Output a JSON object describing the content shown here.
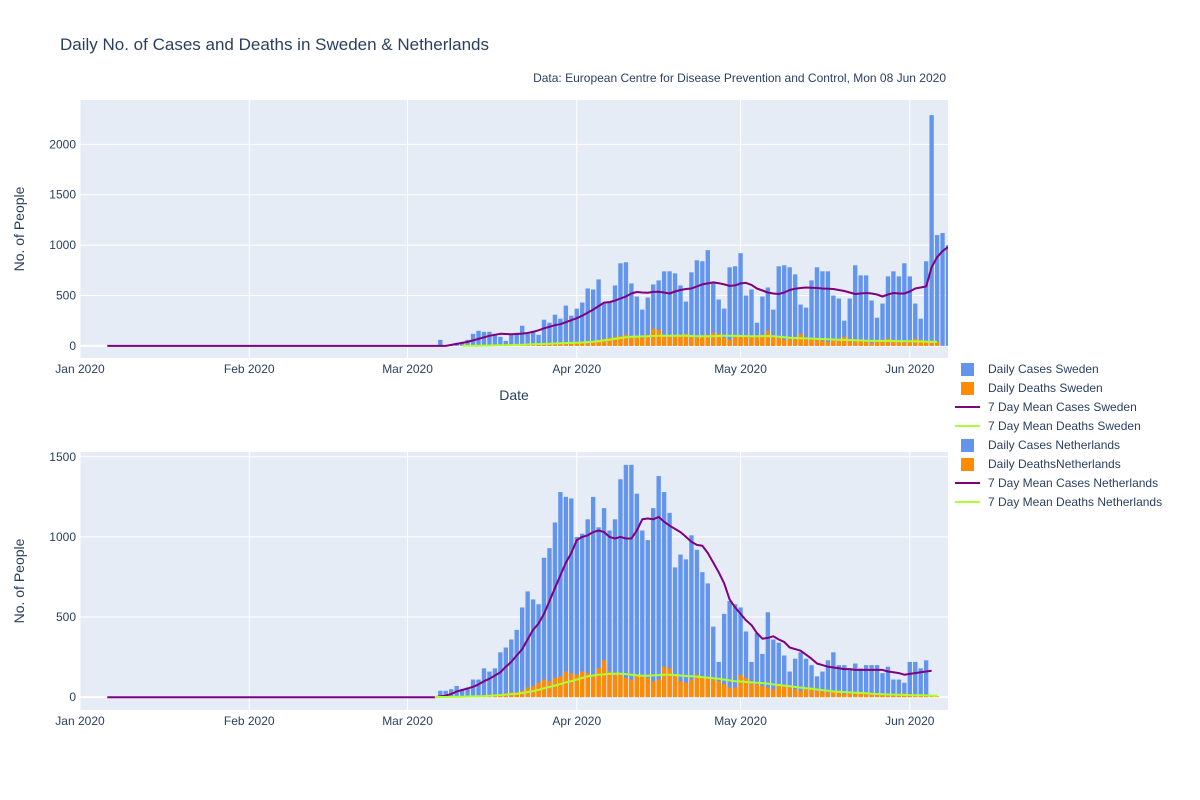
{
  "title": "Daily No. of Cases and Deaths in Sweden & Netherlands",
  "source": "Data: European Centre for Disease Prevention and Control, Mon 08 Jun 2020",
  "colors": {
    "cases_bar": "#6495ed",
    "deaths_bar": "#ff8c00",
    "mean_cases": "#800080",
    "mean_deaths": "#adff2f",
    "plot_bg": "#e5ecf6",
    "grid": "#ffffff"
  },
  "legend": [
    {
      "label": "Daily Cases Sweden",
      "kind": "bar",
      "color": "#6495ed"
    },
    {
      "label": "Daily Deaths Sweden",
      "kind": "bar",
      "color": "#ff8c00"
    },
    {
      "label": "7 Day Mean Cases Sweden",
      "kind": "line",
      "color": "#800080"
    },
    {
      "label": "7 Day Mean Deaths Sweden",
      "kind": "line",
      "color": "#adff2f"
    },
    {
      "label": "Daily Cases Netherlands",
      "kind": "bar",
      "color": "#6495ed"
    },
    {
      "label": "Daily DeathsNetherlands",
      "kind": "bar",
      "color": "#ff8c00"
    },
    {
      "label": "7 Day Mean Cases Netherlands",
      "kind": "line",
      "color": "#800080"
    },
    {
      "label": "7 Day Mean Deaths Netherlands",
      "kind": "line",
      "color": "#adff2f"
    }
  ],
  "chart_data": [
    {
      "type": "bar",
      "country": "Sweden",
      "xlabel": "Date",
      "ylabel": "No. of People",
      "xlim": [
        "2020-01-01",
        "2020-06-08"
      ],
      "ylim": [
        -120,
        2440
      ],
      "xticks": [
        "Jan 2020",
        "Feb 2020",
        "Mar 2020",
        "Apr 2020",
        "May 2020",
        "Jun 2020"
      ],
      "yticks": [
        0,
        500,
        1000,
        1500,
        2000
      ],
      "cases": {
        "start": "2020-03-04",
        "values": [
          0,
          0,
          0,
          60,
          0,
          10,
          30,
          40,
          60,
          120,
          150,
          140,
          140,
          120,
          90,
          50,
          120,
          130,
          200,
          120,
          150,
          110,
          260,
          230,
          310,
          270,
          400,
          300,
          370,
          430,
          570,
          560,
          660,
          420,
          430,
          600,
          820,
          830,
          620,
          490,
          360,
          480,
          610,
          650,
          740,
          740,
          720,
          600,
          440,
          730,
          850,
          840,
          950,
          620,
          460,
          370,
          780,
          790,
          920,
          500,
          560,
          230,
          490,
          580,
          360,
          790,
          800,
          780,
          710,
          410,
          380,
          650,
          780,
          740,
          740,
          500,
          470,
          250,
          470,
          800,
          700,
          700,
          450,
          280,
          420,
          690,
          740,
          690,
          820,
          690,
          420,
          270,
          840,
          2290,
          1100,
          1120,
          1000,
          850
        ]
      },
      "deaths": {
        "start": "2020-03-11",
        "values": [
          1,
          2,
          2,
          3,
          4,
          6,
          7,
          8,
          10,
          12,
          14,
          16,
          18,
          20,
          22,
          24,
          26,
          28,
          30,
          32,
          34,
          36,
          40,
          45,
          50,
          60,
          70,
          80,
          90,
          100,
          110,
          100,
          90,
          80,
          110,
          170,
          160,
          110,
          90,
          100,
          110,
          120,
          90,
          80,
          100,
          110,
          130,
          120,
          80,
          60,
          90,
          110,
          100,
          90,
          100,
          110,
          150,
          100,
          80,
          60,
          70,
          90,
          120,
          80,
          70,
          60,
          50,
          40,
          60,
          70,
          90,
          70,
          60,
          50,
          40,
          30,
          50,
          60,
          70,
          60,
          40,
          30,
          60,
          70,
          60,
          50,
          45,
          40
        ]
      },
      "mean_cases": {
        "start": "2020-03-04",
        "values": [
          0,
          0,
          0,
          0,
          0,
          10,
          20,
          30,
          40,
          55,
          70,
          85,
          100,
          110,
          120,
          118,
          116,
          118,
          122,
          128,
          140,
          155,
          175,
          190,
          205,
          215,
          235,
          255,
          275,
          300,
          330,
          360,
          395,
          430,
          435,
          450,
          470,
          490,
          520,
          535,
          530,
          528,
          536,
          538,
          530,
          520,
          540,
          555,
          565,
          570,
          590,
          610,
          620,
          630,
          622,
          610,
          595,
          600,
          620,
          625,
          605,
          570,
          550,
          530,
          520,
          515,
          530,
          555,
          568,
          575,
          580,
          577,
          575,
          570,
          568,
          565,
          555,
          545,
          530,
          515,
          520,
          525,
          520,
          510,
          490,
          510,
          525,
          520,
          520,
          540,
          570,
          580,
          590,
          780,
          880,
          940,
          980,
          1025
        ]
      },
      "mean_deaths": {
        "start": "2020-03-11",
        "values": [
          1,
          1,
          2,
          2,
          3,
          4,
          5,
          6,
          7,
          8,
          10,
          12,
          14,
          16,
          18,
          20,
          22,
          24,
          26,
          28,
          30,
          32,
          34,
          38,
          42,
          48,
          55,
          62,
          70,
          78,
          85,
          90,
          92,
          94,
          95,
          98,
          100,
          100,
          100,
          100,
          100,
          100,
          98,
          96,
          95,
          95,
          96,
          98,
          100,
          100,
          99,
          98,
          97,
          96,
          96,
          97,
          98,
          95,
          90,
          85,
          80,
          78,
          76,
          74,
          72,
          70,
          68,
          66,
          64,
          62,
          60,
          58,
          56,
          54,
          52,
          50,
          50,
          50,
          50,
          49,
          48,
          47,
          46,
          45,
          44,
          43,
          42,
          40
        ]
      }
    },
    {
      "type": "bar",
      "country": "Netherlands",
      "xlabel": "",
      "ylabel": "No. of People",
      "xlim": [
        "2020-01-01",
        "2020-06-08"
      ],
      "ylim": [
        -80,
        1530
      ],
      "xticks": [
        "Jan 2020",
        "Feb 2020",
        "Mar 2020",
        "Apr 2020",
        "May 2020",
        "Jun 2020"
      ],
      "yticks": [
        0,
        500,
        1000,
        1500
      ],
      "cases": {
        "start": "2020-03-04",
        "values": [
          0,
          0,
          0,
          40,
          40,
          50,
          70,
          50,
          60,
          110,
          110,
          180,
          160,
          180,
          280,
          310,
          360,
          420,
          560,
          660,
          610,
          580,
          870,
          930,
          1090,
          1280,
          1250,
          1240,
          1000,
          1020,
          1110,
          1250,
          1060,
          1180,
          1040,
          1110,
          1360,
          1450,
          1450,
          1270,
          1040,
          980,
          1180,
          1380,
          1280,
          1150,
          810,
          890,
          860,
          1010,
          920,
          780,
          710,
          440,
          220,
          520,
          600,
          580,
          560,
          410,
          220,
          400,
          270,
          530,
          360,
          340,
          260,
          160,
          240,
          280,
          240,
          200,
          130,
          160,
          230,
          280,
          200,
          200,
          180,
          210,
          180,
          200,
          200,
          200,
          150,
          190,
          110,
          110,
          90,
          220,
          220,
          180,
          230
        ]
      },
      "deaths": {
        "start": "2020-03-06",
        "values": [
          1,
          1,
          2,
          3,
          4,
          5,
          6,
          8,
          10,
          12,
          14,
          16,
          20,
          24,
          30,
          30,
          40,
          60,
          70,
          90,
          110,
          100,
          120,
          130,
          160,
          150,
          140,
          160,
          150,
          140,
          180,
          230,
          160,
          150,
          140,
          120,
          110,
          130,
          140,
          120,
          100,
          110,
          190,
          180,
          140,
          100,
          90,
          110,
          140,
          130,
          120,
          110,
          100,
          80,
          60,
          60,
          140,
          120,
          90,
          80,
          70,
          60,
          50,
          80,
          70,
          60,
          50,
          40,
          50,
          60,
          40,
          35,
          30,
          40,
          30,
          20,
          30,
          20,
          20,
          30,
          25,
          20,
          20,
          15,
          10,
          20,
          25,
          20,
          15,
          10,
          10,
          5,
          5
        ]
      },
      "mean_cases": {
        "start": "2020-03-04",
        "values": [
          0,
          0,
          0,
          5,
          10,
          20,
          35,
          45,
          55,
          65,
          80,
          100,
          115,
          135,
          155,
          190,
          220,
          260,
          300,
          360,
          420,
          460,
          520,
          600,
          680,
          760,
          840,
          900,
          980,
          1000,
          1010,
          1030,
          1040,
          1030,
          1000,
          990,
          1000,
          990,
          990,
          1040,
          1110,
          1115,
          1110,
          1125,
          1095,
          1070,
          1050,
          1030,
          1000,
          970,
          950,
          945,
          900,
          840,
          780,
          710,
          610,
          560,
          520,
          480,
          450,
          400,
          365,
          370,
          380,
          360,
          345,
          310,
          300,
          290,
          265,
          240,
          210,
          200,
          190,
          185,
          180,
          175,
          175,
          170,
          170,
          170,
          170,
          170,
          170,
          160,
          155,
          150,
          140,
          145,
          150,
          155,
          160,
          165
        ]
      },
      "mean_deaths": {
        "start": "2020-03-06",
        "values": [
          1,
          1,
          1,
          2,
          2,
          3,
          4,
          5,
          6,
          7,
          9,
          11,
          13,
          16,
          19,
          22,
          26,
          32,
          38,
          46,
          56,
          64,
          72,
          82,
          92,
          100,
          110,
          120,
          130,
          135,
          140,
          142,
          145,
          146,
          146,
          144,
          140,
          136,
          134,
          134,
          136,
          138,
          140,
          140,
          138,
          135,
          132,
          130,
          128,
          125,
          122,
          118,
          115,
          110,
          105,
          100,
          98,
          95,
          92,
          90,
          88,
          85,
          80,
          76,
          72,
          68,
          64,
          60,
          56,
          52,
          48,
          44,
          40,
          36,
          34,
          32,
          30,
          28,
          26,
          24,
          22,
          20,
          18,
          17,
          16,
          15,
          14,
          13,
          12,
          12,
          11,
          10,
          10
        ]
      }
    }
  ]
}
